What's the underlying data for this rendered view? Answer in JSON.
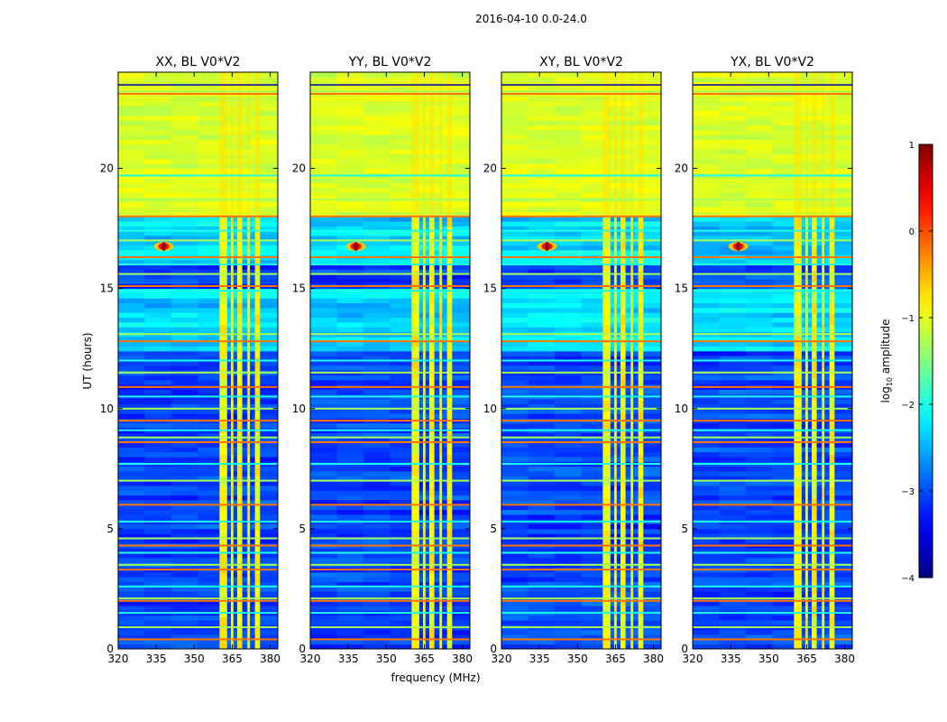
{
  "chart_data": {
    "type": "heatmap",
    "suptitle": "2016-04-10 0.0-24.0",
    "xlabel": "frequency (MHz)",
    "ylabel": "UT (hours)",
    "xlim": [
      320,
      383
    ],
    "ylim": [
      0,
      24
    ],
    "x_ticks": [
      320,
      335,
      350,
      365,
      380
    ],
    "x_tick_labels": [
      "320",
      "335",
      "350",
      "365",
      "380"
    ],
    "y_ticks": [
      0,
      5,
      10,
      15,
      20
    ],
    "y_tick_labels": [
      "0",
      "5",
      "10",
      "15",
      "20"
    ],
    "colorbar": {
      "label": "log",
      "label_sub": "10",
      "label_rest": " amplitude",
      "range": [
        -4,
        1
      ],
      "ticks": [
        1,
        0,
        -1,
        -2,
        -3,
        -4
      ],
      "tick_labels": [
        "1",
        "0",
        "−1",
        "−2",
        "−3",
        "−4"
      ],
      "colormap": "jet"
    },
    "panels": [
      {
        "title": "XX, BL V0*V2",
        "rfi_blocks": [
          [
            360,
            363
          ],
          [
            364.5,
            365.5
          ],
          [
            367,
            369
          ],
          [
            371,
            372
          ],
          [
            374,
            376
          ]
        ],
        "burst": {
          "freq": 338,
          "time": 16.75
        }
      },
      {
        "title": "YY, BL V0*V2",
        "rfi_blocks": [
          [
            360,
            363
          ],
          [
            364.5,
            365.5
          ],
          [
            367,
            369
          ],
          [
            371,
            372
          ],
          [
            374,
            376
          ]
        ],
        "burst": {
          "freq": 338,
          "time": 16.75
        }
      },
      {
        "title": "XY, BL V0*V2",
        "rfi_blocks": [
          [
            360,
            363
          ],
          [
            364.5,
            365.5
          ],
          [
            367,
            369
          ],
          [
            371,
            372
          ],
          [
            374,
            376
          ]
        ],
        "burst": {
          "freq": 338,
          "time": 16.75
        }
      },
      {
        "title": "YX, BL V0*V2",
        "rfi_blocks": [
          [
            360,
            363
          ],
          [
            364.5,
            365.5
          ],
          [
            367,
            369
          ],
          [
            371,
            372
          ],
          [
            374,
            376
          ]
        ],
        "burst": {
          "freq": 338,
          "time": 16.75
        }
      }
    ],
    "time_bands": {
      "high_amplitude": [
        [
          18.1,
          24.0
        ]
      ],
      "moderate": [
        [
          12.5,
          15.0
        ],
        [
          16.0,
          18.0
        ]
      ],
      "flag_lines": [
        0.4,
        0.9,
        1.5,
        2.0,
        2.1,
        2.6,
        3.3,
        3.5,
        4.0,
        4.3,
        4.6,
        5.3,
        6.0,
        7.0,
        7.7,
        8.6,
        8.8,
        9.1,
        9.5,
        10.0,
        10.5,
        10.9,
        11.5,
        12.0,
        12.8,
        13.1,
        14.9,
        15.1,
        15.6,
        16.0,
        16.3,
        17.0,
        17.4,
        18.0,
        18.7,
        19.7,
        23.1,
        23.2
      ]
    },
    "grid": false
  }
}
